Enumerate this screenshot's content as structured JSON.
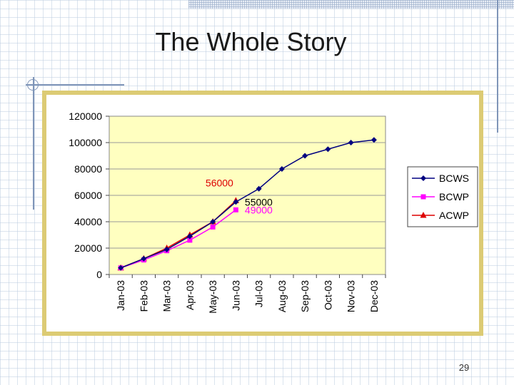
{
  "slide": {
    "title": "The Whole Story",
    "page_number": "29"
  },
  "chart_data": {
    "type": "line",
    "categories": [
      "Jan-03",
      "Feb-03",
      "Mar-03",
      "Apr-03",
      "May-03",
      "Jun-03",
      "Jul-03",
      "Aug-03",
      "Sep-03",
      "Oct-03",
      "Nov-03",
      "Dec-03"
    ],
    "yticks": [
      "0",
      "20000",
      "40000",
      "60000",
      "80000",
      "100000",
      "120000"
    ],
    "ylim": [
      0,
      120000
    ],
    "series": [
      {
        "name": "BCWS",
        "color": "#000080",
        "marker": "diamond",
        "values": [
          5000,
          12000,
          19000,
          29000,
          40000,
          55000,
          65000,
          80000,
          90000,
          95000,
          100000,
          102000
        ]
      },
      {
        "name": "BCWP",
        "color": "#ff00ff",
        "marker": "square",
        "values": [
          5000,
          11000,
          18000,
          26000,
          36000,
          49000,
          null,
          null,
          null,
          null,
          null,
          null
        ]
      },
      {
        "name": "ACWP",
        "color": "#dd0000",
        "marker": "triangle",
        "values": [
          5000,
          12000,
          20000,
          30000,
          40000,
          56000,
          null,
          null,
          null,
          null,
          null,
          null
        ]
      }
    ],
    "annotations": [
      {
        "text": "56000",
        "color": "#dd0000"
      },
      {
        "text": "55000",
        "color": "#000000"
      },
      {
        "text": "49000",
        "color": "#ff00ff"
      }
    ],
    "plot_background": "#ffffc0",
    "grid": true,
    "legend_position": "right"
  }
}
